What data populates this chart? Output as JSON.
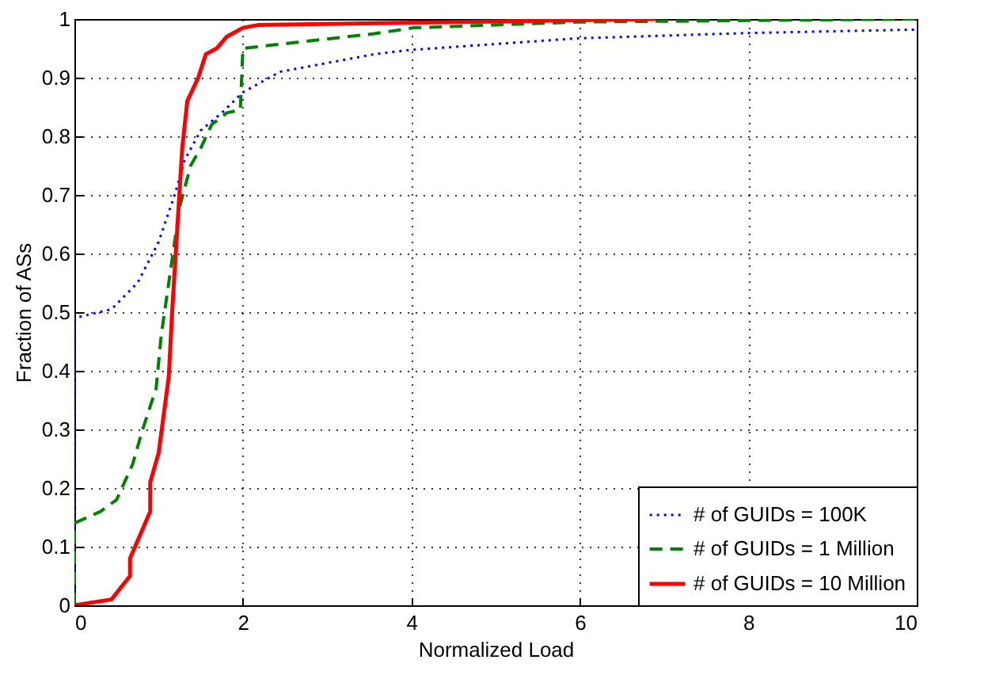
{
  "chart_data": {
    "type": "line",
    "xlabel": "Normalized Load",
    "ylabel": "Fraction of ASs",
    "xlim": [
      0,
      10
    ],
    "xticks": [
      0,
      2,
      4,
      6,
      8,
      10
    ],
    "ylim": [
      0,
      1
    ],
    "yticks": [
      0,
      0.1,
      0.2,
      0.3,
      0.4,
      0.5,
      0.6,
      0.7,
      0.8,
      0.9,
      1
    ],
    "grid": true,
    "legend": "bottom right",
    "marker": "none",
    "series": [
      {
        "name": "# of GUIDs = 100K",
        "color": "#0000ff",
        "line_style": "dotted",
        "x": [
          0,
          0,
          0.44,
          0.75,
          1.0,
          1.19,
          1.31,
          1.5,
          1.75,
          2.0,
          2.44,
          3.56,
          3.97,
          5.97,
          7.97,
          10
        ],
        "values": [
          0,
          0.49,
          0.505,
          0.55,
          0.62,
          0.7,
          0.76,
          0.81,
          0.84,
          0.875,
          0.91,
          0.94,
          0.947,
          0.967,
          0.976,
          0.982
        ]
      },
      {
        "name": "# of GUIDs = 1 Million",
        "color": "#008000",
        "line_style": "dashed",
        "x": [
          0,
          0,
          0.31,
          0.5,
          0.69,
          0.81,
          0.97,
          1.03,
          1.12,
          1.25,
          1.38,
          1.5,
          1.63,
          1.81,
          1.97,
          2.0,
          2.63,
          3.56,
          4.03,
          6,
          10
        ],
        "values": [
          0,
          0.14,
          0.16,
          0.18,
          0.24,
          0.3,
          0.37,
          0.46,
          0.55,
          0.68,
          0.75,
          0.78,
          0.82,
          0.84,
          0.845,
          0.95,
          0.96,
          0.975,
          0.985,
          0.995,
          1
        ]
      },
      {
        "name": "# of GUIDs = 10 Million",
        "color": "#ff0000",
        "line_style": "solid",
        "x": [
          0,
          0.44,
          0.66,
          0.66,
          0.78,
          0.9,
          0.9,
          1.0,
          1.12,
          1.16,
          1.22,
          1.28,
          1.34,
          1.47,
          1.56,
          1.69,
          1.81,
          2.0,
          2.19,
          4.6,
          6.9
        ],
        "values": [
          0,
          0.01,
          0.05,
          0.08,
          0.12,
          0.16,
          0.21,
          0.26,
          0.39,
          0.5,
          0.64,
          0.78,
          0.86,
          0.9,
          0.94,
          0.95,
          0.97,
          0.985,
          0.99,
          0.995,
          1
        ]
      }
    ]
  }
}
